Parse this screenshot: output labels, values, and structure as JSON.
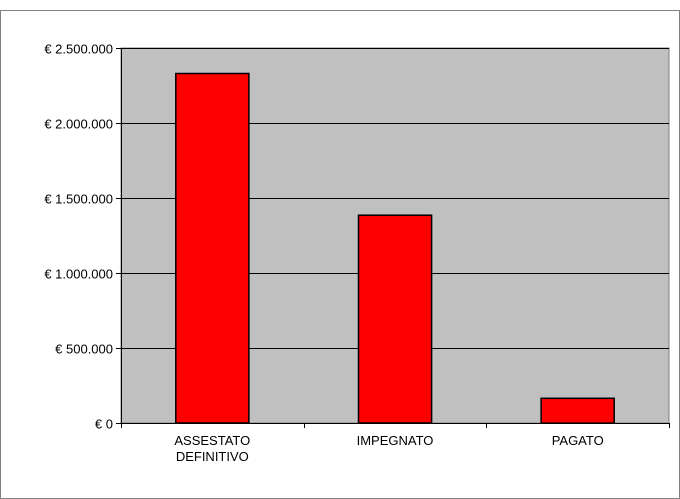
{
  "chart_data": {
    "type": "bar",
    "categories": [
      [
        "ASSESTATO",
        "DEFINITIVO"
      ],
      [
        "IMPEGNATO"
      ],
      [
        "PAGATO"
      ]
    ],
    "values": [
      2330000,
      1385000,
      165000
    ],
    "title": "",
    "xlabel": "",
    "ylabel": "",
    "ylim": [
      0,
      2500000
    ],
    "yticks": [
      0,
      500000,
      1000000,
      1500000,
      2000000,
      2500000
    ],
    "ytick_labels": [
      "€ 0",
      "€ 500.000",
      "€ 1.000.000",
      "€ 1.500.000",
      "€ 2.000.000",
      "€ 2.500.000"
    ],
    "grid": true,
    "legend": "none",
    "colors": {
      "bar_fill": "#ff0000",
      "bar_stroke": "#000000",
      "plot_background": "#c0c0c0",
      "gridline": "#000000",
      "frame": "#808080"
    }
  }
}
